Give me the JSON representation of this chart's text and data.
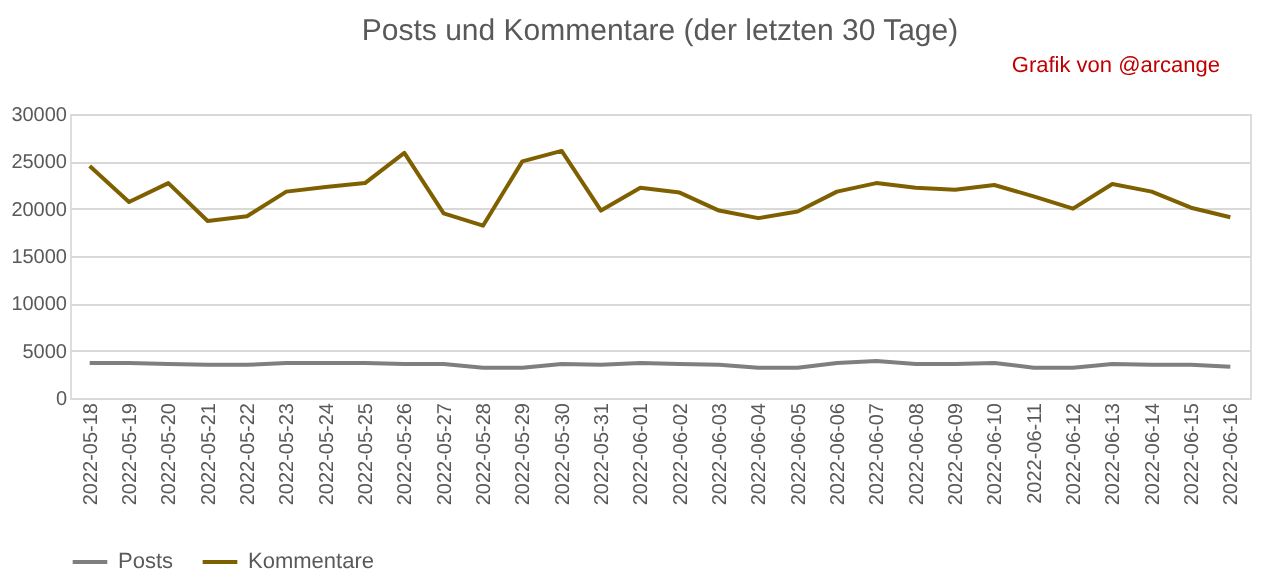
{
  "chart_data": {
    "type": "line",
    "title": "Posts und Kommentare (der letzten 30 Tage)",
    "annotations": [
      "Grafik von @arcange"
    ],
    "categories": [
      "2022-05-18",
      "2022-05-19",
      "2022-05-20",
      "2022-05-21",
      "2022-05-22",
      "2022-05-23",
      "2022-05-24",
      "2022-05-25",
      "2022-05-26",
      "2022-05-27",
      "2022-05-28",
      "2022-05-29",
      "2022-05-30",
      "2022-05-31",
      "2022-06-01",
      "2022-06-02",
      "2022-06-03",
      "2022-06-04",
      "2022-06-05",
      "2022-06-06",
      "2022-06-07",
      "2022-06-08",
      "2022-06-09",
      "2022-06-10",
      "2022-06-11",
      "2022-06-12",
      "2022-06-13",
      "2022-06-14",
      "2022-06-15",
      "2022-06-16"
    ],
    "series": [
      {
        "name": "Posts",
        "color": "#7f7f7f",
        "values": [
          3700,
          3700,
          3600,
          3500,
          3500,
          3700,
          3700,
          3700,
          3600,
          3600,
          3200,
          3200,
          3600,
          3500,
          3700,
          3600,
          3500,
          3200,
          3200,
          3700,
          3900,
          3600,
          3600,
          3700,
          3200,
          3200,
          3600,
          3500,
          3500,
          3300
        ]
      },
      {
        "name": "Kommentare",
        "color": "#7f6000",
        "values": [
          24500,
          20700,
          22700,
          18700,
          19200,
          21800,
          22300,
          22700,
          25900,
          19500,
          18200,
          25000,
          26100,
          19800,
          22200,
          21700,
          19800,
          19000,
          19700,
          21800,
          22700,
          22200,
          22000,
          22500,
          21300,
          20000,
          22600,
          21800,
          20100,
          19100
        ]
      }
    ],
    "ylim": [
      0,
      30000
    ],
    "yticks": [
      0,
      5000,
      10000,
      15000,
      20000,
      25000,
      30000
    ],
    "grid": "y",
    "legend": "bottom",
    "marker": "none",
    "line_style": "solid"
  }
}
